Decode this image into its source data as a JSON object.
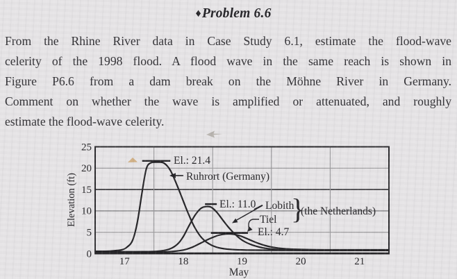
{
  "title": {
    "marker": "♦",
    "text": "Problem 6.6"
  },
  "problem": {
    "lines": [
      "From the Rhine River data in Case Study 6.1, estimate the flood-wave",
      "celerity of the 1998 flood. A flood wave in the same reach is shown in",
      "Figure P6.6 from a dam break on the Möhne River in Germany.",
      "Comment on whether the wave is amplified or attenuated, and roughly",
      "estimate the flood-wave celerity."
    ]
  },
  "labels": {
    "peak_ruhrort": "El.: 21.4",
    "station_ruhrort": "Ruhrort (Germany)",
    "peak_lobith": "El.: 11.0",
    "station_lobith": "Lobith",
    "station_tiel": "Tiel",
    "peak_tiel": "El.: 4.7",
    "region": "(the Netherlands)",
    "brace": "}"
  },
  "chart_data": {
    "type": "line",
    "xlabel": "May",
    "ylabel": "Elevation (ft)",
    "xlim": [
      16.5,
      21.5
    ],
    "ylim": [
      0,
      25
    ],
    "x_tick_values": [
      17,
      18,
      19,
      20,
      21
    ],
    "x_gridlines": [
      17.5,
      18.5,
      19.5,
      20.5
    ],
    "y_tick_values": [
      0,
      5,
      10,
      15,
      20,
      25
    ],
    "y_gridlines": [
      5,
      10,
      15,
      20
    ],
    "emphasized_y_gridline": 15,
    "grid": true,
    "legend_position": "annotated-on-plot",
    "series": [
      {
        "name": "Ruhrort (Germany)",
        "peak_elevation_ft": 21.4,
        "peak_day_may": 17.55,
        "points": [
          [
            16.5,
            0.55
          ],
          [
            16.75,
            0.6
          ],
          [
            16.95,
            0.9
          ],
          [
            17.05,
            1.6
          ],
          [
            17.14,
            3.2
          ],
          [
            17.22,
            7.5
          ],
          [
            17.3,
            14.5
          ],
          [
            17.37,
            19.8
          ],
          [
            17.44,
            21.2
          ],
          [
            17.55,
            21.4
          ],
          [
            17.67,
            21.2
          ],
          [
            17.78,
            19.5
          ],
          [
            17.9,
            15.8
          ],
          [
            18.0,
            12.3
          ],
          [
            18.1,
            8.9
          ],
          [
            18.2,
            6.0
          ],
          [
            18.32,
            3.6
          ],
          [
            18.45,
            2.2
          ],
          [
            18.6,
            1.4
          ],
          [
            18.8,
            1.0
          ],
          [
            19.1,
            0.85
          ],
          [
            19.6,
            0.78
          ],
          [
            20.5,
            0.75
          ],
          [
            21.5,
            0.75
          ]
        ]
      },
      {
        "name": "Lobith",
        "peak_elevation_ft": 11.0,
        "peak_day_may": 18.4,
        "points": [
          [
            16.5,
            0.45
          ],
          [
            17.2,
            0.45
          ],
          [
            17.55,
            0.55
          ],
          [
            17.75,
            1.0
          ],
          [
            17.9,
            2.2
          ],
          [
            18.0,
            4.0
          ],
          [
            18.1,
            6.6
          ],
          [
            18.2,
            9.0
          ],
          [
            18.3,
            10.6
          ],
          [
            18.38,
            11.0
          ],
          [
            18.47,
            10.9
          ],
          [
            18.57,
            9.7
          ],
          [
            18.67,
            7.9
          ],
          [
            18.78,
            6.0
          ],
          [
            18.9,
            4.3
          ],
          [
            19.02,
            3.0
          ],
          [
            19.18,
            2.0
          ],
          [
            19.38,
            1.3
          ],
          [
            19.65,
            0.95
          ],
          [
            20.1,
            0.82
          ],
          [
            21.5,
            0.8
          ]
        ]
      },
      {
        "name": "Tiel",
        "peak_elevation_ft": 4.7,
        "peak_day_may": 18.8,
        "points": [
          [
            16.5,
            0.35
          ],
          [
            17.4,
            0.35
          ],
          [
            17.75,
            0.45
          ],
          [
            18.0,
            0.85
          ],
          [
            18.15,
            1.5
          ],
          [
            18.3,
            2.5
          ],
          [
            18.45,
            3.5
          ],
          [
            18.6,
            4.3
          ],
          [
            18.73,
            4.6
          ],
          [
            18.85,
            4.55
          ],
          [
            18.98,
            4.1
          ],
          [
            19.12,
            3.3
          ],
          [
            19.28,
            2.4
          ],
          [
            19.48,
            1.6
          ],
          [
            19.72,
            1.15
          ],
          [
            20.1,
            0.95
          ],
          [
            20.6,
            0.9
          ],
          [
            21.5,
            0.9
          ]
        ]
      }
    ],
    "peak_markers": [
      {
        "elevation": 21.7,
        "day_from": 17.3,
        "day_to": 17.78
      },
      {
        "elevation": 11.6,
        "day_from": 18.37,
        "day_to": 18.57
      },
      {
        "elevation": 4.85,
        "day_from": 18.47,
        "day_to": 19.1
      }
    ]
  }
}
